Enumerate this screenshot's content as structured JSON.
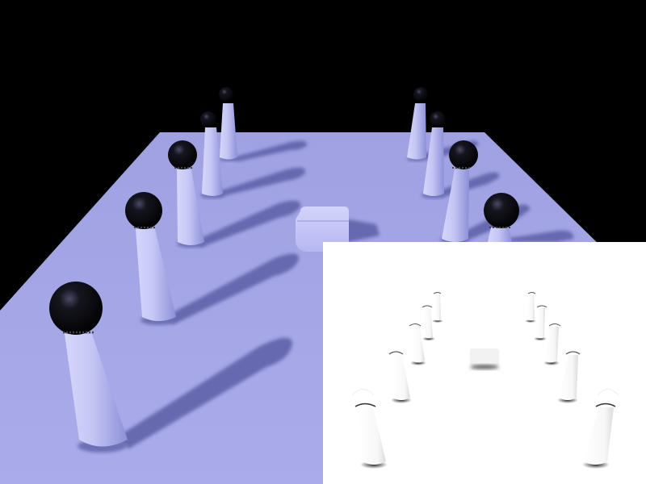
{
  "scene": {
    "background_color": "#000000",
    "floor_color": "#a6a8e8",
    "pillar_color": "#c3c4f4",
    "ball_color": "#0b0b12",
    "shadow_color": "#5e61a8",
    "inset_background": "#ffffff",
    "inset_shadow_color": "#2a2a2a",
    "objects": {
      "pillars_left": 5,
      "pillars_right": 5,
      "center_box": 1
    }
  }
}
